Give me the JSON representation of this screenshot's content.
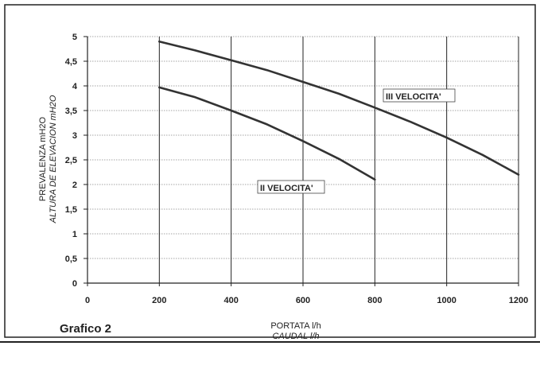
{
  "chart_data": {
    "type": "line",
    "figure_label": "Grafico 2",
    "xlabel": "PORTATA l/h",
    "xlabel_alt": "CAUDAL   l/h",
    "ylabel": "PREVALENZA mH2O",
    "ylabel_alt": "ALTURA DE ELEVACION mH2O",
    "xlim": [
      0,
      1200
    ],
    "ylim": [
      0,
      5
    ],
    "x_ticks": [
      "0",
      "200",
      "400",
      "600",
      "800",
      "1000",
      "1200"
    ],
    "y_ticks": [
      "0",
      "0,5",
      "1",
      "1,5",
      "2",
      "2,5",
      "3",
      "3,5",
      "4",
      "4,5",
      "5"
    ],
    "grid": true,
    "series": [
      {
        "name": "II VELOCITA'",
        "x": [
          200,
          300,
          400,
          500,
          600,
          700,
          800
        ],
        "y": [
          3.97,
          3.77,
          3.5,
          3.22,
          2.88,
          2.52,
          2.1
        ]
      },
      {
        "name": "III VELOCITA'",
        "x": [
          200,
          300,
          400,
          500,
          600,
          700,
          800,
          900,
          1000,
          1100,
          1200
        ],
        "y": [
          4.9,
          4.72,
          4.52,
          4.32,
          4.08,
          3.84,
          3.56,
          3.27,
          2.95,
          2.6,
          2.2
        ]
      }
    ]
  }
}
